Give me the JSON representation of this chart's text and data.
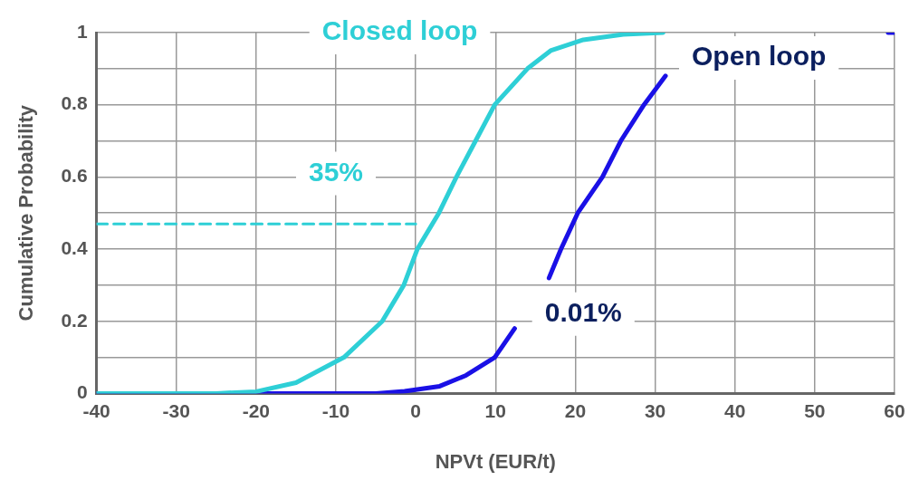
{
  "chart_data": {
    "type": "line",
    "xlabel": "NPVt (EUR/t)",
    "ylabel": "Cumulative Probability",
    "xlim": [
      -40,
      60
    ],
    "xticks": [
      -40,
      -30,
      -20,
      -10,
      0,
      10,
      20,
      30,
      40,
      50,
      60
    ],
    "ylim": [
      0,
      1
    ],
    "yticks": [
      0,
      {
        "value": 0.1,
        "label": null
      },
      0.2,
      {
        "value": 0.3,
        "label": null
      },
      0.4,
      {
        "value": 0.5,
        "label": null
      },
      0.6,
      {
        "value": 0.7,
        "label": null
      },
      0.8,
      {
        "value": 0.9,
        "label": null
      },
      1
    ],
    "grid": true,
    "series": [
      {
        "name": "Closed loop",
        "color": "#2ecfd6",
        "x": [
          -40,
          -25,
          -20,
          -15,
          -9,
          -4.2,
          -1.5,
          0.2,
          2.9,
          5.1,
          7.5,
          9.9,
          14,
          16.9,
          21,
          26,
          31
        ],
        "values": [
          0,
          0,
          0.005,
          0.03,
          0.1,
          0.2,
          0.3,
          0.4,
          0.5,
          0.6,
          0.7,
          0.8,
          0.9,
          0.95,
          0.98,
          0.995,
          1
        ]
      },
      {
        "name": "Open loop",
        "color": "#1a10e6",
        "x": [
          -40,
          -5,
          -1.4,
          3,
          6.3,
          9.9,
          12.4,
          14.5,
          16.7,
          18.2,
          20.3,
          23.4,
          25.7,
          28.6,
          31.3,
          45,
          59.2,
          60
        ],
        "values": [
          0,
          0,
          0.006,
          0.02,
          0.05,
          0.1,
          0.18,
          null,
          0.32,
          0.4,
          0.5,
          0.6,
          0.7,
          0.8,
          0.88,
          null,
          1,
          1
        ]
      },
      {
        "color": "#2ecfd6",
        "line_style": "dashed",
        "x": [
          -40,
          0
        ],
        "values": [
          0.47,
          0.47
        ]
      }
    ],
    "annotations": [
      "35%",
      "0.01%"
    ]
  }
}
